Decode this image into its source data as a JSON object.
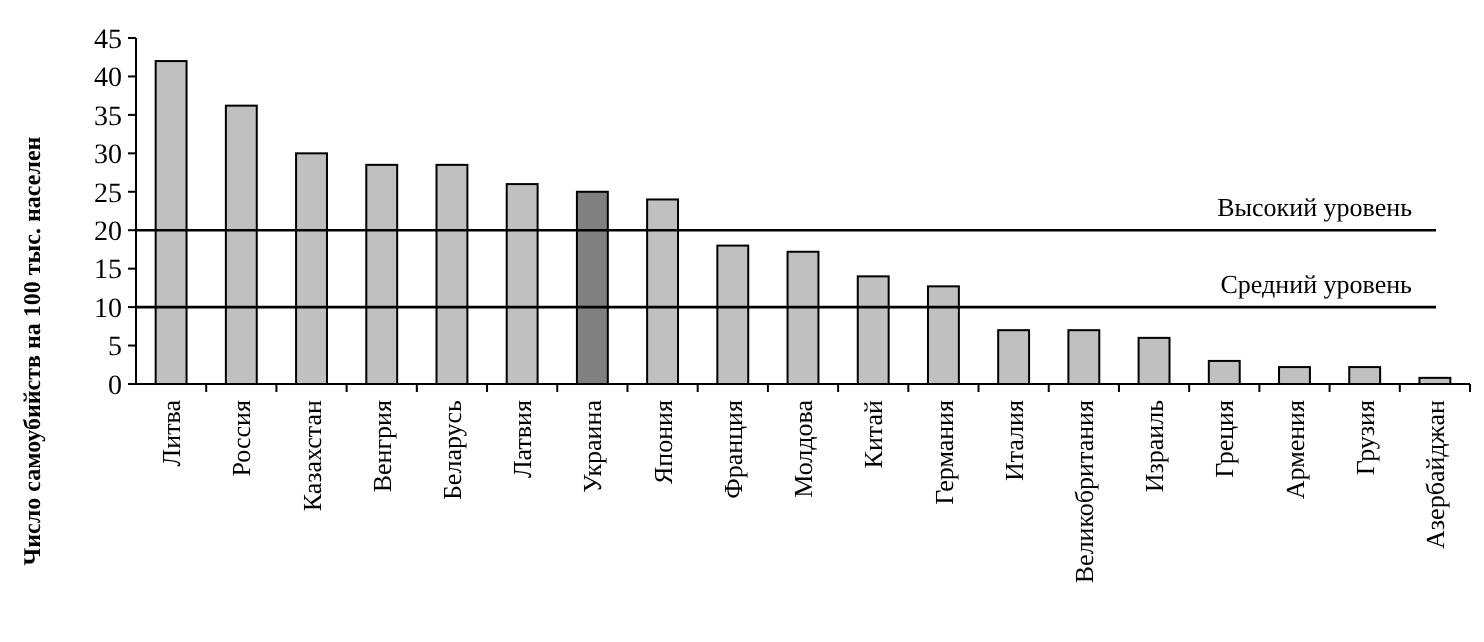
{
  "chart_data": {
    "type": "bar",
    "ylabel": "Число самоубийств на 100 тыс. населен",
    "categories": [
      "Литва",
      "Россия",
      "Казахстан",
      "Венгрия",
      "Беларусь",
      "Латвия",
      "Украина",
      "Япония",
      "Франция",
      "Молдова",
      "Китай",
      "Германия",
      "Италия",
      "Великобритания",
      "Израиль",
      "Греция",
      "Армения",
      "Грузия",
      "Азербайджан"
    ],
    "values": [
      42,
      36.2,
      30,
      28.5,
      28.5,
      26,
      25,
      24,
      18,
      17.2,
      14,
      12.7,
      7,
      7,
      6,
      3,
      2.2,
      2.2,
      0.8
    ],
    "colors": [
      "#c0c0c0",
      "#c0c0c0",
      "#c0c0c0",
      "#c0c0c0",
      "#c0c0c0",
      "#c0c0c0",
      "#808080",
      "#c0c0c0",
      "#c0c0c0",
      "#c0c0c0",
      "#c0c0c0",
      "#c0c0c0",
      "#c0c0c0",
      "#c0c0c0",
      "#c0c0c0",
      "#c0c0c0",
      "#c0c0c0",
      "#c0c0c0",
      "#c0c0c0"
    ],
    "ylim": [
      0,
      45
    ],
    "yticks": [
      0,
      5,
      10,
      15,
      20,
      25,
      30,
      35,
      40,
      45
    ],
    "ref_lines": [
      {
        "axis": "y",
        "value": 20,
        "label": "Высокий уровень",
        "color": "#000000"
      },
      {
        "axis": "y",
        "value": 10,
        "label": "Средний уровень",
        "color": "#000000"
      }
    ]
  }
}
